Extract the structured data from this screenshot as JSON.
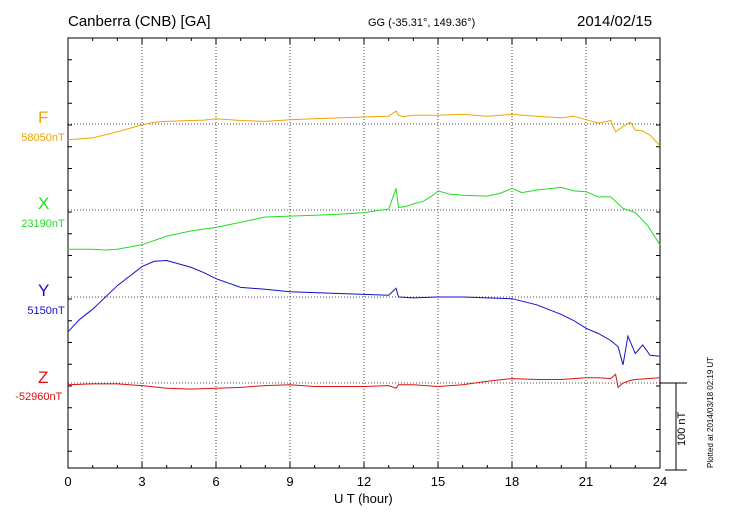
{
  "header": {
    "station": "Canberra (CNB)  [GA]",
    "coords": "GG (-35.31°, 149.36°)",
    "date": "2014/02/15"
  },
  "xaxis_label": "U T (hour)",
  "plotted_note": "Plotted at 2014/03/18 02:19 UT",
  "scale_label": "100 nT",
  "chart_data": {
    "type": "line",
    "title": "Canberra (CNB)  [GA]",
    "xlabel": "U T (hour)",
    "xlim": [
      0,
      24
    ],
    "xticks": [
      0,
      3,
      6,
      9,
      12,
      15,
      18,
      21,
      24
    ],
    "grid": true,
    "scale_bar_nT": 100,
    "units": "nT",
    "series": [
      {
        "name": "F",
        "baseline_label": "58050nT",
        "baseline": 58050,
        "color": "#f0a500",
        "x": [
          0,
          1,
          2,
          3,
          3.5,
          4,
          5,
          5.5,
          6,
          7,
          8,
          9,
          10,
          11,
          12,
          13,
          13.3,
          13.4,
          13.6,
          14,
          15,
          16,
          17,
          18,
          19,
          20,
          20.5,
          21,
          21.5,
          22,
          22.2,
          22.5,
          22.8,
          23,
          23.3,
          23.6,
          24
        ],
        "y": [
          58032,
          58034,
          58041,
          58049,
          58052,
          58053,
          58054,
          58054.5,
          58056,
          58054,
          58053,
          58055,
          58056,
          58057,
          58058,
          58059,
          58065,
          58060,
          58058.5,
          58060,
          58060,
          58061,
          58059,
          58061,
          58059,
          58057,
          58059,
          58055,
          58051,
          58054,
          58041,
          58047,
          58052,
          58043,
          58042,
          58037,
          58025
        ]
      },
      {
        "name": "X",
        "baseline_label": "23190nT",
        "baseline": 23190,
        "color": "#22dd22",
        "x": [
          0,
          1,
          1.5,
          2,
          3,
          4,
          5,
          6,
          7,
          8,
          9,
          10,
          11,
          12,
          13,
          13.3,
          13.4,
          13.7,
          14,
          14.4,
          14.8,
          15,
          15.5,
          16,
          17,
          17.5,
          18,
          18.4,
          19,
          20,
          20.5,
          21,
          21.5,
          22,
          22.5,
          23,
          23.5,
          24
        ],
        "y": [
          23145,
          23145,
          23144,
          23145,
          23150,
          23160,
          23166,
          23170,
          23176,
          23182,
          23183,
          23184,
          23185,
          23187,
          23191,
          23215,
          23193,
          23194,
          23197,
          23200,
          23207,
          23212,
          23208,
          23207,
          23206,
          23209,
          23215,
          23210,
          23213,
          23216,
          23212,
          23211,
          23205,
          23205,
          23192,
          23187,
          23172,
          23150
        ]
      },
      {
        "name": "Y",
        "baseline_label": "5150nT",
        "baseline": 5150,
        "color": "#1111cc",
        "x": [
          0,
          0.5,
          1,
          2,
          3,
          3.5,
          4,
          5,
          5.5,
          6,
          7,
          8,
          9,
          10,
          11,
          12,
          13,
          13.3,
          13.4,
          14,
          15,
          16,
          17,
          18,
          19,
          20,
          20.5,
          21,
          21.5,
          22,
          22.3,
          22.5,
          22.7,
          23,
          23.3,
          23.6,
          24
        ],
        "y": [
          5110,
          5125,
          5136,
          5163,
          5185,
          5191,
          5192,
          5184,
          5178,
          5171,
          5161,
          5159,
          5156,
          5155,
          5154,
          5153,
          5152,
          5160,
          5150,
          5149,
          5150,
          5150,
          5149,
          5148,
          5141,
          5130,
          5123,
          5114,
          5108,
          5100,
          5093,
          5072,
          5105,
          5085,
          5095,
          5083,
          5082
        ]
      },
      {
        "name": "Z",
        "baseline_label": "-52960nT",
        "baseline": -52960,
        "color": "#dd1111",
        "x": [
          0,
          1,
          2,
          3,
          4,
          5,
          6,
          7,
          8,
          9,
          10,
          11,
          12,
          13,
          13.3,
          13.4,
          14,
          15,
          16,
          17,
          18,
          19,
          20,
          21,
          21.5,
          22,
          22.2,
          22.3,
          22.5,
          22.8,
          23,
          23.5,
          24
        ],
        "y": [
          -52962,
          -52961,
          -52961,
          -52963,
          -52966,
          -52967,
          -52966,
          -52965,
          -52963,
          -52962,
          -52964,
          -52964,
          -52964,
          -52963,
          -52966,
          -52962,
          -52962,
          -52964,
          -52962,
          -52958,
          -52955,
          -52956,
          -52956,
          -52954,
          -52954,
          -52955,
          -52950,
          -52965,
          -52960,
          -52957,
          -52956,
          -52955,
          -52954
        ]
      }
    ]
  }
}
